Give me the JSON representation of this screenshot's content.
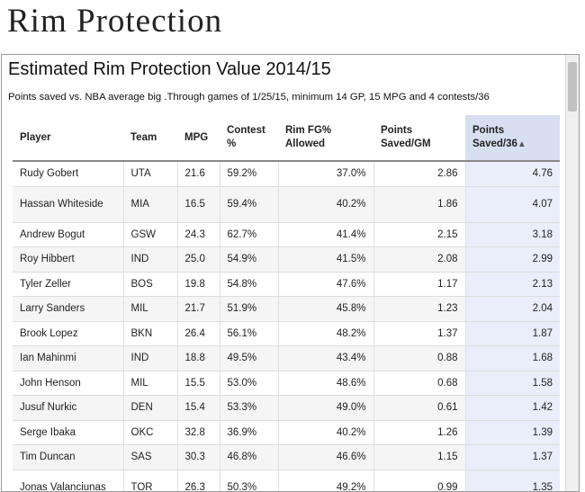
{
  "page": {
    "title": "Rim Protection"
  },
  "widget": {
    "title": "Estimated Rim Protection Value 2014/15",
    "subtitle": "Points saved vs. NBA average big .Through games of 1/25/15, minimum 14 GP, 15 MPG and 4 contests/36"
  },
  "table": {
    "headers": {
      "player": "Player",
      "team": "Team",
      "mpg": "MPG",
      "contest_l1": "Contest",
      "contest_l2": "%",
      "rimfg_l1": "Rim FG%",
      "rimfg_l2": "Allowed",
      "ptsgm_l1": "Points",
      "ptsgm_l2": "Saved/GM",
      "pts36_l1": "Points",
      "pts36_l2": "Saved/36",
      "sort_indicator": "▲"
    },
    "rows": [
      {
        "player": "Rudy Gobert",
        "team": "UTA",
        "mpg": "21.6",
        "contest": "59.2%",
        "rimfg": "37.0%",
        "ptsgm": "2.86",
        "pts36": "4.76"
      },
      {
        "player": "Hassan Whiteside",
        "team": "MIA",
        "mpg": "16.5",
        "contest": "59.4%",
        "rimfg": "40.2%",
        "ptsgm": "1.86",
        "pts36": "4.07"
      },
      {
        "player": "Andrew Bogut",
        "team": "GSW",
        "mpg": "24.3",
        "contest": "62.7%",
        "rimfg": "41.4%",
        "ptsgm": "2.15",
        "pts36": "3.18"
      },
      {
        "player": "Roy Hibbert",
        "team": "IND",
        "mpg": "25.0",
        "contest": "54.9%",
        "rimfg": "41.5%",
        "ptsgm": "2.08",
        "pts36": "2.99"
      },
      {
        "player": "Tyler Zeller",
        "team": "BOS",
        "mpg": "19.8",
        "contest": "54.8%",
        "rimfg": "47.6%",
        "ptsgm": "1.17",
        "pts36": "2.13"
      },
      {
        "player": "Larry Sanders",
        "team": "MIL",
        "mpg": "21.7",
        "contest": "51.9%",
        "rimfg": "45.8%",
        "ptsgm": "1.23",
        "pts36": "2.04"
      },
      {
        "player": "Brook Lopez",
        "team": "BKN",
        "mpg": "26.4",
        "contest": "56.1%",
        "rimfg": "48.2%",
        "ptsgm": "1.37",
        "pts36": "1.87"
      },
      {
        "player": "Ian Mahinmi",
        "team": "IND",
        "mpg": "18.8",
        "contest": "49.5%",
        "rimfg": "43.4%",
        "ptsgm": "0.88",
        "pts36": "1.68"
      },
      {
        "player": "John Henson",
        "team": "MIL",
        "mpg": "15.5",
        "contest": "53.0%",
        "rimfg": "48.6%",
        "ptsgm": "0.68",
        "pts36": "1.58"
      },
      {
        "player": "Jusuf Nurkic",
        "team": "DEN",
        "mpg": "15.4",
        "contest": "53.3%",
        "rimfg": "49.0%",
        "ptsgm": "0.61",
        "pts36": "1.42"
      },
      {
        "player": "Serge Ibaka",
        "team": "OKC",
        "mpg": "32.8",
        "contest": "36.9%",
        "rimfg": "40.2%",
        "ptsgm": "1.26",
        "pts36": "1.39"
      },
      {
        "player": "Tim Duncan",
        "team": "SAS",
        "mpg": "30.3",
        "contest": "46.8%",
        "rimfg": "46.6%",
        "ptsgm": "1.15",
        "pts36": "1.37"
      },
      {
        "player": "Jonas Valanciunas",
        "team": "TOR",
        "mpg": "26.3",
        "contest": "50.3%",
        "rimfg": "49.2%",
        "ptsgm": "0.99",
        "pts36": "1.35"
      }
    ]
  }
}
